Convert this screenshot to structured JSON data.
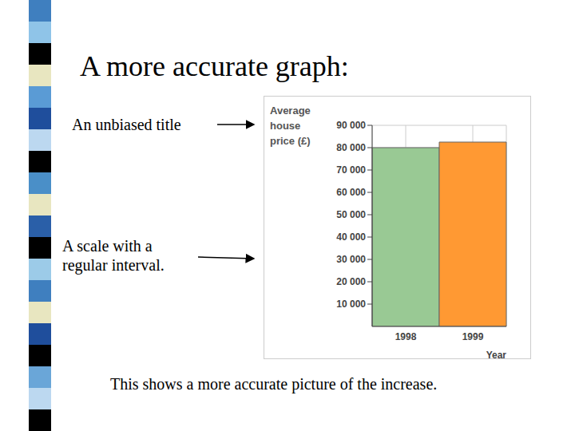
{
  "title": "A more accurate graph:",
  "annotations": [
    "An unbiased title",
    "A scale with a regular interval."
  ],
  "caption": "This shows a more accurate picture of the increase.",
  "chart_data": {
    "type": "bar",
    "y_label": "Average house price (£)",
    "x_label": "Year",
    "categories": [
      "1998",
      "1999"
    ],
    "values": [
      80000,
      82500
    ],
    "colors": [
      "#99c994",
      "#ff9933"
    ],
    "ylim": [
      0,
      90000
    ],
    "yticks": [
      {
        "value": 10000,
        "label": "10 000"
      },
      {
        "value": 20000,
        "label": "20 000"
      },
      {
        "value": 30000,
        "label": "30 000"
      },
      {
        "value": 40000,
        "label": "40 000"
      },
      {
        "value": 50000,
        "label": "50 000"
      },
      {
        "value": 60000,
        "label": "60 000"
      },
      {
        "value": 70000,
        "label": "70 000"
      },
      {
        "value": 80000,
        "label": "80 000"
      },
      {
        "value": 90000,
        "label": "90 000"
      }
    ],
    "grid": true
  }
}
